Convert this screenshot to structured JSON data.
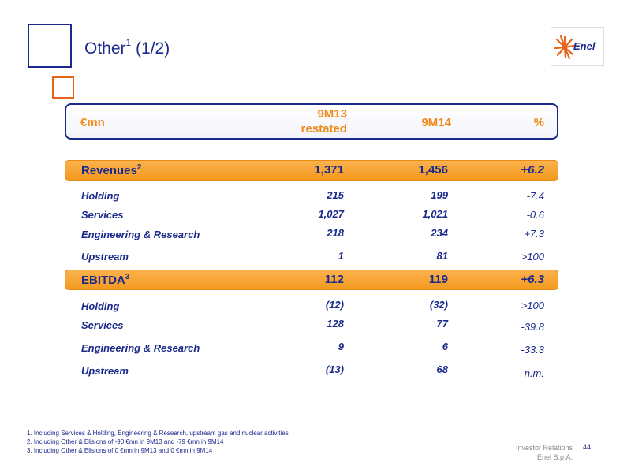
{
  "title": {
    "main": "Other",
    "sup": "1",
    "suffix": " (1/2)"
  },
  "logo": {
    "text": "Enel",
    "colors": {
      "orange": "#e8631a",
      "blue": "#1a2a8c"
    }
  },
  "header": {
    "col_label": "€mn",
    "col_9m13_line1": "9M13",
    "col_9m13_line2": "restated",
    "col_9m14": "9M14",
    "col_pct": "%"
  },
  "table": {
    "revenues": {
      "label": "Revenues",
      "sup": "2",
      "v9m13": "1,371",
      "v9m14": "1,456",
      "pct": "+6.2",
      "rows": [
        {
          "label": "Holding",
          "v9m13": "215",
          "v9m14": "199",
          "pct": "-7.4"
        },
        {
          "label": "Services",
          "v9m13": "1,027",
          "v9m14": "1,021",
          "pct": "-0.6"
        },
        {
          "label": "Engineering & Research",
          "v9m13": "218",
          "v9m14": "234",
          "pct": "+7.3"
        },
        {
          "label": "Upstream",
          "v9m13": "1",
          "v9m14": "81",
          "pct": ">100"
        }
      ]
    },
    "ebitda": {
      "label": "EBITDA",
      "sup": "3",
      "v9m13": "112",
      "v9m14": "119",
      "pct": "+6.3",
      "rows": [
        {
          "label": "Holding",
          "v9m13": "(12)",
          "v9m14": "(32)",
          "pct": ">100"
        },
        {
          "label": "Services",
          "v9m13": "128",
          "v9m14": "77",
          "pct": "-39.8"
        },
        {
          "label": "Engineering & Research",
          "v9m13": "9",
          "v9m14": "6",
          "pct": "-33.3"
        },
        {
          "label": "Upstream",
          "v9m13": "(13)",
          "v9m14": "68",
          "pct": "n.m."
        }
      ]
    }
  },
  "footnotes": [
    "1. Including Services & Holding, Engineering & Research, upstream gas and nuclear activities",
    "2. Including Other & Elisions of -90 €mn in 9M13 and -79 €mn in 9M14",
    "3. Including Other & Elisions of 0 €mn in 9M13 and 0 €mn in 9M14"
  ],
  "footer": {
    "line1": "Investor Relations",
    "line2": "Enel S.p.A.",
    "page": "44"
  }
}
